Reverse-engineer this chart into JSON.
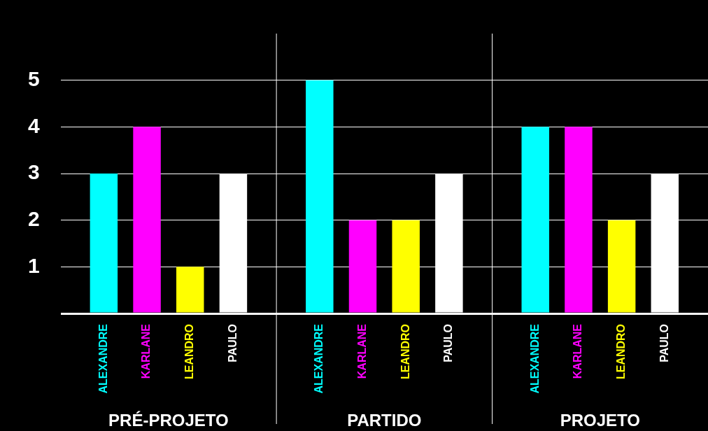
{
  "chart_data": {
    "type": "bar",
    "categories": [
      "PRÉ-PROJETO",
      "PARTIDO",
      "PROJETO"
    ],
    "series": [
      {
        "name": "ALEXANDRE",
        "color": "#00ffff",
        "values": [
          3,
          5,
          4
        ]
      },
      {
        "name": "KARLANE",
        "color": "#ff00ff",
        "values": [
          4,
          2,
          4
        ]
      },
      {
        "name": "LEANDRO",
        "color": "#ffff00",
        "values": [
          1,
          2,
          2
        ]
      },
      {
        "name": "PAULO",
        "color": "#ffffff",
        "values": [
          3,
          3,
          3
        ]
      }
    ],
    "ylim": [
      0,
      6
    ],
    "yticks": [
      {
        "value": 0,
        "label": null
      },
      1,
      2,
      3,
      4,
      5
    ],
    "grid": true,
    "legend": false
  }
}
